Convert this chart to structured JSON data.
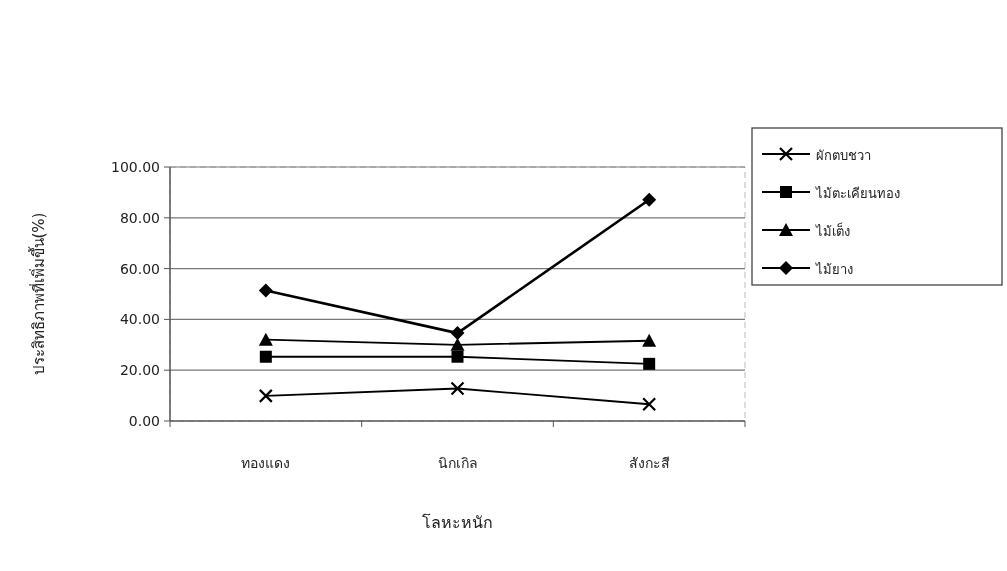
{
  "chart_data": {
    "type": "line",
    "xlabel": "โลหะหนัก",
    "ylabel": "ประสิทธิภาพที่เพิ่มขึ้น(%)",
    "categories": [
      "ทองแดง",
      "นิกเกิล",
      "สังกะสี"
    ],
    "series": [
      {
        "name": "ผักตบชวา",
        "color": "#000000",
        "marker": "cross",
        "values": [
          9.9,
          12.8,
          6.6
        ]
      },
      {
        "name": "ไม้ตะเคียนทอง",
        "color": "#000000",
        "marker": "square",
        "values": [
          25.3,
          25.3,
          22.5
        ]
      },
      {
        "name": "ไม้เต็ง",
        "color": "#000000",
        "marker": "triangle",
        "values": [
          32.0,
          30.0,
          31.6
        ]
      },
      {
        "name": "ไม้ยาง",
        "color": "#000000",
        "marker": "diamond",
        "values": [
          51.4,
          34.6,
          87.1
        ]
      }
    ],
    "ylim": [
      0,
      100
    ],
    "yticks": [
      {
        "value": 0,
        "label": "0.00"
      },
      {
        "value": 20,
        "label": "20.00"
      },
      {
        "value": 40,
        "label": "40.00"
      },
      {
        "value": 60,
        "label": "60.00"
      },
      {
        "value": 80,
        "label": "80.00"
      },
      {
        "value": 100,
        "label": "100.00"
      }
    ],
    "grid": "y",
    "legend": "right",
    "line_style": "solid"
  }
}
